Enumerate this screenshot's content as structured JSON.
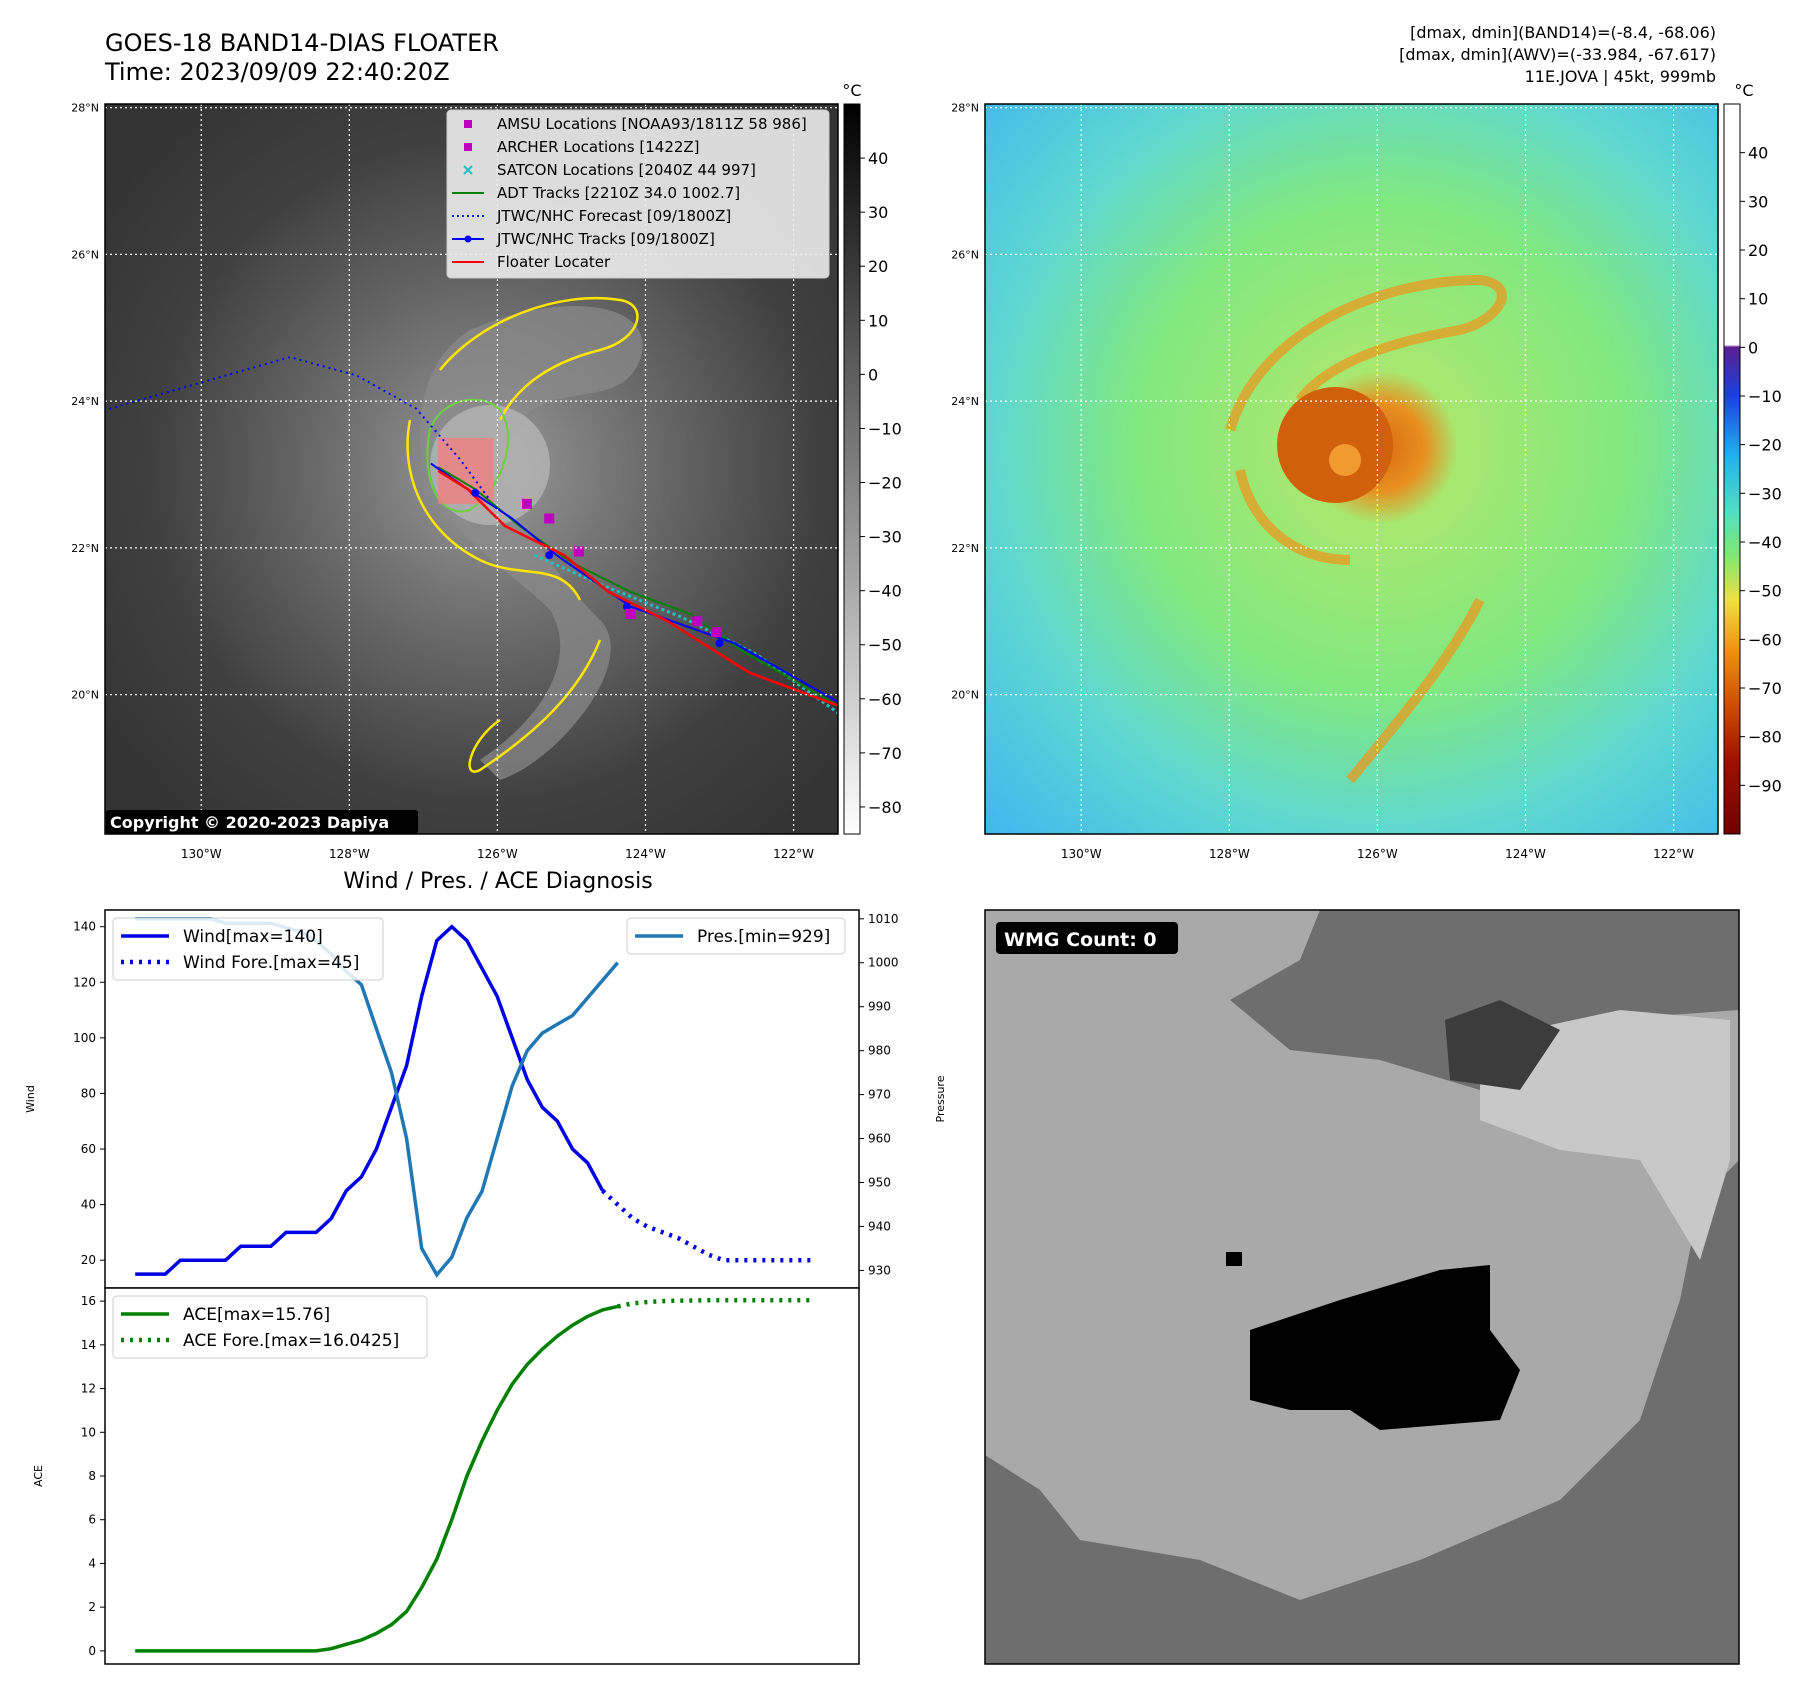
{
  "header": {
    "title_line1": "GOES-18 BAND14-DIAS FLOATER",
    "title_line2": "Time: 2023/09/09 22:40:20Z",
    "info_line1": "[dmax, dmin](BAND14)=(-8.4, -68.06)",
    "info_line2": "[dmax, dmin](AWV)=(-33.984, -67.617)",
    "info_line3": "11E.JOVA | 45kt, 999mb"
  },
  "map_axes": {
    "lat_labels": [
      "28°N",
      "26°N",
      "24°N",
      "22°N",
      "20°N"
    ],
    "lat_values": [
      28,
      26,
      24,
      22,
      20
    ],
    "lon_labels": [
      "130°W",
      "128°W",
      "126°W",
      "124°W",
      "122°W"
    ],
    "lon_values": [
      -130,
      -128,
      -126,
      -124,
      -122
    ],
    "lon_range": [
      -131.3,
      -121.4
    ],
    "lat_range": [
      18.1,
      28.05
    ]
  },
  "ir_colorbar": {
    "unit": "°C",
    "ticks": [
      "40",
      "30",
      "20",
      "10",
      "0",
      "−10",
      "−20",
      "−30",
      "−40",
      "−50",
      "−60",
      "−70",
      "−80"
    ],
    "tick_values": [
      40,
      30,
      20,
      10,
      0,
      -10,
      -20,
      -30,
      -40,
      -50,
      -60,
      -70,
      -80
    ],
    "range": [
      -85,
      50
    ]
  },
  "dias_colorbar": {
    "unit": "°C",
    "ticks": [
      "40",
      "30",
      "20",
      "10",
      "0",
      "−10",
      "−20",
      "−30",
      "−40",
      "−50",
      "−60",
      "−70",
      "−80",
      "−90"
    ],
    "tick_values": [
      40,
      30,
      20,
      10,
      0,
      -10,
      -20,
      -30,
      -40,
      -50,
      -60,
      -70,
      -80,
      -90
    ],
    "range": [
      -100,
      50
    ]
  },
  "legend": {
    "items": [
      {
        "label": "AMSU Locations [NOAA93/1811Z 58 986]",
        "marker": "square",
        "color": "#c000c0"
      },
      {
        "label": "ARCHER Locations [1422Z]",
        "marker": "square",
        "color": "#c000c0"
      },
      {
        "label": "SATCON Locations [2040Z 44 997]",
        "marker": "x",
        "color": "#20c0c0"
      },
      {
        "label": "ADT Tracks [2210Z 34.0 1002.7]",
        "marker": "line",
        "color": "#008000"
      },
      {
        "label": "JTWC/NHC Forecast [09/1800Z]",
        "marker": "dotted",
        "color": "#0000ff"
      },
      {
        "label": "JTWC/NHC Tracks [09/1800Z]",
        "marker": "line-dot",
        "color": "#0000ff"
      },
      {
        "label": "Floater Locater",
        "marker": "line",
        "color": "#ff0000"
      }
    ]
  },
  "tracks": {
    "forecast_dotted": [
      [
        -131.4,
        23.85
      ],
      [
        -128.8,
        24.6
      ],
      [
        -127.9,
        24.35
      ],
      [
        -127.1,
        23.9
      ],
      [
        -126.5,
        23.2
      ],
      [
        -126.1,
        22.65
      ]
    ],
    "jtwc_track": [
      [
        -126.9,
        23.15
      ],
      [
        -126.4,
        22.8
      ],
      [
        -125.8,
        22.4
      ],
      [
        -125.2,
        21.9
      ],
      [
        -124.2,
        21.2
      ],
      [
        -122.8,
        20.7
      ],
      [
        -121.4,
        19.9
      ]
    ],
    "jtwc_points": [
      [
        -126.3,
        22.75
      ],
      [
        -125.3,
        21.9
      ],
      [
        -124.25,
        21.2
      ],
      [
        -123.0,
        20.7
      ]
    ],
    "adt_track": [
      [
        -126.8,
        23.1
      ],
      [
        -126.3,
        22.8
      ],
      [
        -125.7,
        22.3
      ],
      [
        -125.0,
        21.8
      ],
      [
        -124.2,
        21.4
      ],
      [
        -123.4,
        21.1
      ],
      [
        -122.7,
        20.6
      ],
      [
        -121.4,
        19.85
      ]
    ],
    "floater_track": [
      [
        -126.8,
        23.05
      ],
      [
        -126.4,
        22.8
      ],
      [
        -125.9,
        22.3
      ],
      [
        -125.1,
        21.9
      ],
      [
        -124.5,
        21.4
      ],
      [
        -123.7,
        21.0
      ],
      [
        -122.6,
        20.3
      ],
      [
        -121.4,
        19.85
      ]
    ],
    "satcon_track": [
      [
        -125.5,
        21.9
      ],
      [
        -124.6,
        21.5
      ],
      [
        -123.5,
        21.05
      ],
      [
        -122.5,
        20.55
      ],
      [
        -121.4,
        19.75
      ]
    ],
    "amsu_points": [
      [
        -125.6,
        22.6
      ],
      [
        -125.3,
        22.4
      ],
      [
        -124.9,
        21.95
      ],
      [
        -124.2,
        21.1
      ],
      [
        -123.3,
        21.0
      ],
      [
        -123.05,
        20.85
      ]
    ],
    "floater_box": {
      "lon": [
        -126.8,
        -126.05
      ],
      "lat": [
        22.6,
        23.5
      ]
    }
  },
  "copyright": "Copyright © 2020-2023 Dapiya",
  "wmg": {
    "label": "WMG Count: 0"
  },
  "diagnosis": {
    "title": "Wind / Pres. / ACE Diagnosis",
    "wind_axis": {
      "label": "Wind",
      "ticks": [
        20,
        40,
        60,
        80,
        100,
        120,
        140
      ],
      "range": [
        10,
        146
      ]
    },
    "pres_axis": {
      "label": "Pressure",
      "ticks": [
        930,
        940,
        950,
        960,
        970,
        980,
        990,
        1000,
        1010
      ],
      "range": [
        926,
        1012
      ]
    },
    "ace_axis": {
      "label": "ACE",
      "ticks": [
        0,
        2,
        4,
        6,
        8,
        10,
        12,
        14,
        16
      ],
      "range": [
        -0.6,
        16.6
      ]
    },
    "x_range": [
      -2,
      48
    ],
    "legend_wind": [
      "Wind[max=140]",
      "Wind Fore.[max=45]"
    ],
    "legend_pres": [
      "Pres.[min=929]"
    ],
    "legend_ace": [
      "ACE[max=15.76]",
      "ACE Fore.[max=16.0425]"
    ]
  },
  "chart_data": {
    "type": "line",
    "title": "Wind / Pres. / ACE Diagnosis",
    "x": [
      0,
      1,
      2,
      3,
      4,
      5,
      6,
      7,
      8,
      9,
      10,
      11,
      12,
      13,
      14,
      15,
      16,
      17,
      18,
      19,
      20,
      21,
      22,
      23,
      24,
      25,
      26,
      27,
      28,
      29,
      30,
      31,
      32
    ],
    "series": [
      {
        "name": "Wind[max=140]",
        "axis": "wind",
        "color": "#0000e6",
        "values": [
          15,
          15,
          15,
          20,
          20,
          20,
          20,
          25,
          25,
          25,
          30,
          30,
          30,
          35,
          45,
          50,
          60,
          75,
          90,
          115,
          135,
          140,
          135,
          125,
          115,
          100,
          85,
          75,
          70,
          60,
          55,
          45,
          null
        ]
      },
      {
        "name": "Wind Fore.[max=45]",
        "axis": "wind",
        "color": "#0000e6",
        "dotted": true,
        "x": [
          31,
          32,
          33,
          34,
          35,
          36,
          37,
          38,
          39,
          40,
          41,
          42,
          43,
          44,
          45
        ],
        "values": [
          45,
          40,
          35,
          32,
          30,
          28,
          25,
          22,
          20,
          20,
          20,
          20,
          20,
          20,
          20
        ]
      },
      {
        "name": "Pres.[min=929]",
        "axis": "pres",
        "color": "#1f77b4",
        "values": [
          1010,
          1010,
          1010,
          1010,
          1010,
          1010,
          1009,
          1009,
          1009,
          1009,
          1008,
          1007,
          1005,
          1002,
          998,
          995,
          985,
          975,
          960,
          935,
          929,
          933,
          942,
          948,
          960,
          972,
          980,
          984,
          986,
          988,
          992,
          996,
          1000
        ]
      },
      {
        "name": "ACE[max=15.76]",
        "axis": "ace",
        "color": "#008000",
        "values": [
          0,
          0,
          0,
          0,
          0,
          0,
          0,
          0,
          0,
          0,
          0,
          0,
          0,
          0.1,
          0.3,
          0.5,
          0.8,
          1.2,
          1.8,
          2.9,
          4.2,
          6.0,
          8.0,
          9.6,
          11.0,
          12.2,
          13.1,
          13.8,
          14.4,
          14.9,
          15.3,
          15.6,
          15.76
        ]
      },
      {
        "name": "ACE Fore.[max=16.0425]",
        "axis": "ace",
        "color": "#008000",
        "dotted": true,
        "x": [
          32,
          33,
          34,
          35,
          36,
          37,
          38,
          39,
          40,
          41,
          42,
          43,
          44,
          45
        ],
        "values": [
          15.76,
          15.9,
          15.96,
          16.0,
          16.02,
          16.03,
          16.04,
          16.04,
          16.04,
          16.04,
          16.04,
          16.04,
          16.04,
          16.04
        ]
      }
    ]
  },
  "colors": {
    "ir_background": "#3c3c3c",
    "contour_yellow": "#ffe600",
    "contour_green": "#6fcf40",
    "floater_box": "#f08080",
    "dias_cyan": "#5fd0f0",
    "dias_green": "#7ce87c",
    "dias_orange": "#e07a10"
  }
}
